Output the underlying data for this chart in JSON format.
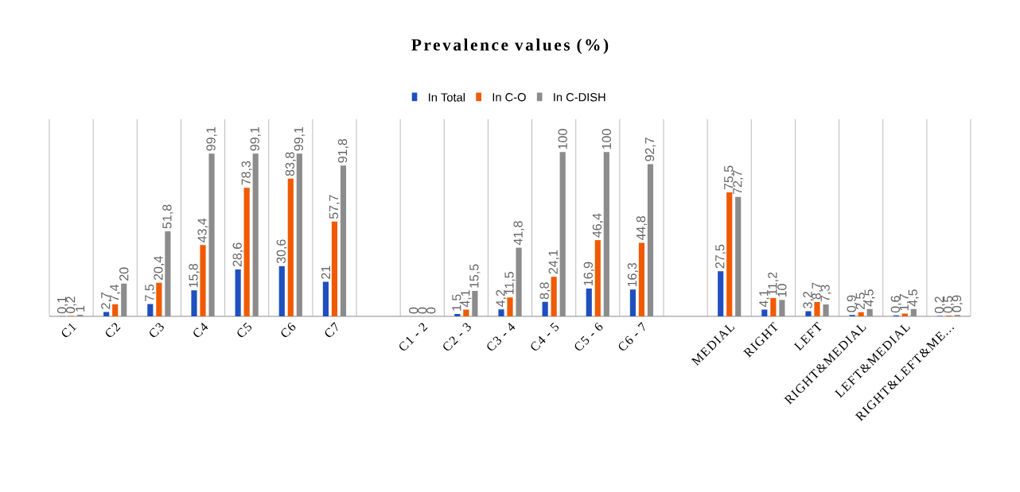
{
  "chart_data": {
    "type": "bar",
    "title": "Prevalence values (%)",
    "categories": [
      "C1",
      "C2",
      "C3",
      "C4",
      "C5",
      "C6",
      "C7",
      null,
      "C1 - 2",
      "C2 - 3",
      "C3 - 4",
      "C4 - 5",
      "C5 - 6",
      "C6 - 7",
      null,
      "MEDIAL",
      "RIGHT",
      "LEFT",
      "RIGHT&MEDIAL",
      "LEFT&MEDIAL",
      "RIGHT&LEFT&ME..."
    ],
    "series": [
      {
        "name": "In Total",
        "color": "#1f4fbf",
        "values": [
          0.1,
          2.7,
          7.5,
          15.8,
          28.6,
          30.6,
          21,
          null,
          0,
          1.5,
          4.2,
          8.8,
          16.9,
          16.3,
          null,
          27.5,
          4.1,
          3.2,
          0.9,
          0.6,
          0.2
        ],
        "value_labels": [
          "0,1",
          "2,7",
          "7,5",
          "15,8",
          "28,6",
          "30,6",
          "21",
          null,
          "0",
          "1,5",
          "4,2",
          "8,8",
          "16,9",
          "16,3",
          null,
          "27,5",
          "4,1",
          "3,2",
          "0,9",
          "0,6",
          "0,2"
        ]
      },
      {
        "name": "In C-O",
        "color": "#f05a00",
        "values": [
          0.2,
          7.4,
          20.4,
          43.4,
          78.3,
          83.8,
          57.7,
          null,
          0,
          4.1,
          11.5,
          24.1,
          46.4,
          44.8,
          null,
          75.5,
          11.2,
          8.7,
          2.5,
          1.7,
          0.5
        ],
        "value_labels": [
          "0,2",
          "7,4",
          "20,4",
          "43,4",
          "78,3",
          "83,8",
          "57,7",
          null,
          "0",
          "4,1",
          "11,5",
          "24,1",
          "46,4",
          "44,8",
          null,
          "75,5",
          "11,2",
          "8,7",
          "2,5",
          "1,7",
          "0,5"
        ]
      },
      {
        "name": "In C-DISH",
        "color": "#8c8c8c",
        "values": [
          1,
          20,
          51.8,
          99.1,
          99.1,
          99.1,
          91.8,
          null,
          0,
          15.5,
          41.8,
          100,
          100,
          92.7,
          null,
          72.7,
          10,
          7.3,
          4.5,
          4.5,
          0.9
        ],
        "value_labels": [
          "1",
          "20",
          "51,8",
          "99,1",
          "99,1",
          "99,1",
          "91,8",
          null,
          "0",
          "15,5",
          "41,8",
          "100",
          "100",
          "92,7",
          null,
          "72,7",
          "10",
          "7,3",
          "4,5",
          "4,5",
          "0,9"
        ]
      }
    ],
    "legend": "top",
    "grid": "x",
    "tick_labels": "x"
  }
}
